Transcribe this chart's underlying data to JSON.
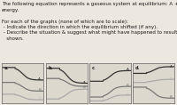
{
  "title_lines": [
    "The following equation represents a gaseous system at equilibrium: A + 2 B ⇌ C +",
    "energy.",
    "",
    "For each of the graphs (none of which are to scale):",
    " - Indicate the direction in which the equilibrium shifted (if any).",
    " - Describe the situation & suggest what might have happened to result in the graph",
    "   shown."
  ],
  "text_color": "#1a1a1a",
  "bg_color": "#ede8df",
  "graph_bg": "#ddd8ce",
  "graph_border": "#777777",
  "colors": {
    "A": "#333333",
    "B": "#777777",
    "C": "#aaaaaa"
  },
  "graphs": [
    {
      "label": "a.",
      "type": "all_decrease"
    },
    {
      "label": "b.",
      "type": "converge"
    },
    {
      "label": "c.",
      "type": "all_increase"
    },
    {
      "label": "d.",
      "type": "spread"
    }
  ]
}
